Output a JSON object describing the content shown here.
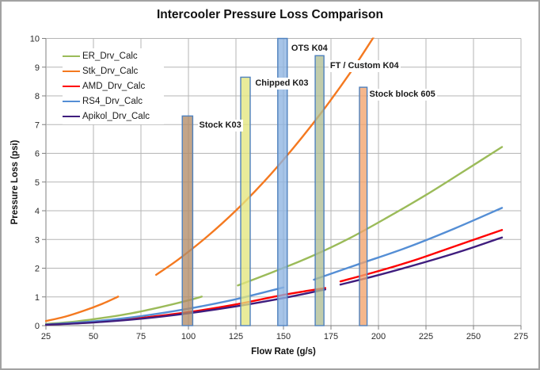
{
  "chart_data": {
    "type": "line+bar",
    "title": "Intercooler Pressure Loss Comparison",
    "xlabel": "Flow Rate (g/s)",
    "ylabel": "Pressure Loss (psi)",
    "xlim": [
      25,
      275
    ],
    "ylim": [
      0,
      10
    ],
    "xticks": [
      25,
      50,
      75,
      100,
      125,
      150,
      175,
      200,
      225,
      250,
      275
    ],
    "yticks": [
      0,
      1,
      2,
      3,
      4,
      5,
      6,
      7,
      8,
      9,
      10
    ],
    "grid": true,
    "legend_position": "inside-top-left",
    "series": [
      {
        "name": "ER_Drv_Calc",
        "color": "#9BBB59",
        "segments": [
          [
            [
              25,
              0.06
            ],
            [
              40,
              0.14
            ],
            [
              55,
              0.27
            ],
            [
              70,
              0.43
            ],
            [
              85,
              0.64
            ],
            [
              100,
              0.88
            ],
            [
              107,
              1.01
            ]
          ],
          [
            [
              126,
              1.4
            ],
            [
              145,
              1.88
            ],
            [
              165,
              2.42
            ],
            [
              185,
              3.05
            ],
            [
              205,
              3.78
            ],
            [
              225,
              4.55
            ],
            [
              245,
              5.38
            ],
            [
              265,
              6.22
            ]
          ]
        ]
      },
      {
        "name": "Stk_Drv_Calc",
        "color": "#F47920",
        "segments": [
          [
            [
              25,
              0.16
            ],
            [
              35,
              0.31
            ],
            [
              45,
              0.52
            ],
            [
              55,
              0.77
            ],
            [
              63,
              1.01
            ]
          ],
          [
            [
              83,
              1.77
            ],
            [
              95,
              2.32
            ],
            [
              110,
              3.11
            ],
            [
              125,
              4.01
            ],
            [
              140,
              5.03
            ],
            [
              155,
              6.17
            ],
            [
              170,
              7.42
            ],
            [
              185,
              8.79
            ],
            [
              198,
              10.1
            ]
          ]
        ]
      },
      {
        "name": "AMD_Drv_Calc",
        "color": "#FF0000",
        "segments": [
          [
            [
              25,
              0.03
            ],
            [
              50,
              0.12
            ],
            [
              75,
              0.27
            ],
            [
              100,
              0.47
            ],
            [
              125,
              0.74
            ],
            [
              150,
              1.07
            ],
            [
              172,
              1.31
            ]
          ],
          [
            [
              180,
              1.54
            ],
            [
              200,
              1.9
            ],
            [
              220,
              2.3
            ],
            [
              240,
              2.76
            ],
            [
              265,
              3.33
            ]
          ]
        ]
      },
      {
        "name": "RS4_Drv_Calc",
        "color": "#548ED5",
        "segments": [
          [
            [
              25,
              0.04
            ],
            [
              50,
              0.15
            ],
            [
              75,
              0.33
            ],
            [
              100,
              0.59
            ],
            [
              125,
              0.92
            ],
            [
              150,
              1.33
            ]
          ],
          [
            [
              166,
              1.6
            ],
            [
              190,
              2.15
            ],
            [
              215,
              2.72
            ],
            [
              240,
              3.38
            ],
            [
              265,
              4.1
            ]
          ]
        ]
      },
      {
        "name": "Apikol_Drv_Calc",
        "color": "#3F1D7E",
        "segments": [
          [
            [
              25,
              0.03
            ],
            [
              50,
              0.11
            ],
            [
              75,
              0.24
            ],
            [
              100,
              0.43
            ],
            [
              125,
              0.67
            ],
            [
              150,
              0.96
            ],
            [
              172,
              1.26
            ]
          ],
          [
            [
              180,
              1.43
            ],
            [
              200,
              1.76
            ],
            [
              225,
              2.22
            ],
            [
              245,
              2.62
            ],
            [
              265,
              3.07
            ]
          ]
        ]
      }
    ],
    "bars": [
      {
        "label": "Stock K03",
        "x": 99.5,
        "width": 5.5,
        "value": 7.3,
        "fill": "#B28C68",
        "label_at": [
          104.8,
          6.95
        ]
      },
      {
        "label": "Chipped K03",
        "x": 130,
        "width": 5.0,
        "value": 8.65,
        "fill": "#E3E57D",
        "label_at": [
          134.3,
          8.42
        ]
      },
      {
        "label": "OTS K04",
        "x": 149.5,
        "width": 5.0,
        "value": 10.0,
        "fill": "#8DB4E2",
        "label_at": [
          153.3,
          9.62
        ]
      },
      {
        "label": "FT / Custom K04",
        "x": 169,
        "width": 4.6,
        "value": 9.4,
        "fill": "#AFBE94",
        "label_at": [
          173.7,
          9.02
        ]
      },
      {
        "label": "Stock block 605",
        "x": 192,
        "width": 4.0,
        "value": 8.3,
        "fill": "#F2A36C",
        "label_at": [
          194.4,
          8.03
        ]
      }
    ],
    "styles": {
      "grid_color": "#B5B5B5",
      "axis_color": "#7F7F7F",
      "bar_border_color": "#4F81BD",
      "bar_opacity": 0.78,
      "background": "#FFFFFF",
      "text_color": "#1A1A1A"
    }
  }
}
